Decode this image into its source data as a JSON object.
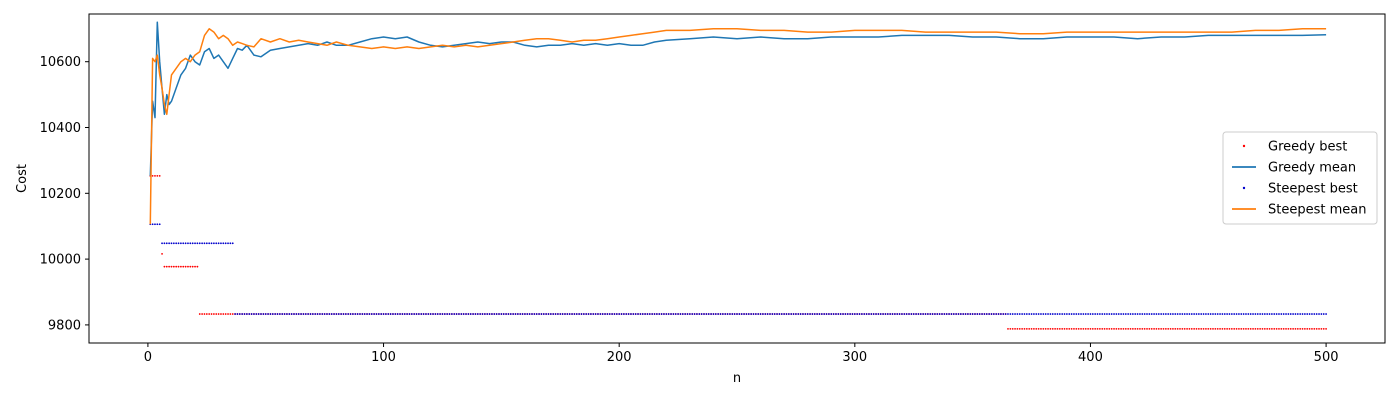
{
  "chart_data": {
    "type": "line",
    "xlabel": "n",
    "ylabel": "Cost",
    "xlim": [
      -25,
      525
    ],
    "ylim": [
      9745,
      10745
    ],
    "x_ticks": [
      0,
      100,
      200,
      300,
      400,
      500
    ],
    "y_ticks": [
      9800,
      10000,
      10200,
      10400,
      10600
    ],
    "grid": false,
    "legend_position": "center-right",
    "series": [
      {
        "name": "Greedy best",
        "kind": "points",
        "color": "#ff0000",
        "segments": [
          {
            "x_from": 1,
            "x_to": 5,
            "value": 10253
          },
          {
            "x_from": 6,
            "x_to": 6,
            "value": 10016
          },
          {
            "x_from": 7,
            "x_to": 21,
            "value": 9977
          },
          {
            "x_from": 22,
            "x_to": 364,
            "value": 9833
          },
          {
            "x_from": 365,
            "x_to": 500,
            "value": 9788
          }
        ]
      },
      {
        "name": "Greedy mean",
        "kind": "line",
        "color": "#1f77b4",
        "x": [
          1,
          2,
          3,
          4,
          5,
          6,
          7,
          8,
          9,
          10,
          12,
          14,
          16,
          18,
          20,
          22,
          24,
          26,
          28,
          30,
          32,
          34,
          36,
          38,
          40,
          42,
          45,
          48,
          52,
          56,
          60,
          64,
          68,
          72,
          76,
          80,
          85,
          90,
          95,
          100,
          105,
          110,
          115,
          120,
          125,
          130,
          135,
          140,
          145,
          150,
          155,
          160,
          165,
          170,
          175,
          180,
          185,
          190,
          195,
          200,
          205,
          210,
          215,
          220,
          230,
          240,
          250,
          260,
          270,
          280,
          290,
          300,
          310,
          320,
          330,
          340,
          350,
          360,
          370,
          380,
          390,
          400,
          410,
          420,
          430,
          440,
          450,
          460,
          470,
          480,
          490,
          500
        ],
        "values": [
          10253,
          10480,
          10430,
          10720,
          10600,
          10520,
          10440,
          10500,
          10470,
          10480,
          10520,
          10560,
          10580,
          10620,
          10600,
          10590,
          10630,
          10640,
          10610,
          10620,
          10600,
          10580,
          10610,
          10640,
          10635,
          10650,
          10620,
          10615,
          10635,
          10640,
          10645,
          10650,
          10655,
          10650,
          10660,
          10650,
          10650,
          10660,
          10670,
          10675,
          10670,
          10675,
          10660,
          10650,
          10645,
          10650,
          10655,
          10660,
          10655,
          10660,
          10660,
          10650,
          10645,
          10650,
          10650,
          10655,
          10650,
          10655,
          10650,
          10655,
          10650,
          10650,
          10660,
          10665,
          10670,
          10675,
          10670,
          10675,
          10670,
          10670,
          10675,
          10675,
          10675,
          10680,
          10680,
          10680,
          10675,
          10675,
          10670,
          10670,
          10675,
          10675,
          10675,
          10670,
          10675,
          10675,
          10680,
          10680,
          10680,
          10680,
          10680,
          10682
        ]
      },
      {
        "name": "Steepest best",
        "kind": "points",
        "color": "#0000cc",
        "segments": [
          {
            "x_from": 1,
            "x_to": 5,
            "value": 10106
          },
          {
            "x_from": 6,
            "x_to": 36,
            "value": 10048
          },
          {
            "x_from": 37,
            "x_to": 500,
            "value": 9833
          }
        ]
      },
      {
        "name": "Steepest mean",
        "kind": "line",
        "color": "#ff7f0e",
        "x": [
          1,
          2,
          3,
          4,
          5,
          6,
          7,
          8,
          9,
          10,
          12,
          14,
          16,
          18,
          20,
          22,
          24,
          26,
          28,
          30,
          32,
          34,
          36,
          38,
          40,
          42,
          45,
          48,
          52,
          56,
          60,
          64,
          68,
          72,
          76,
          80,
          85,
          90,
          95,
          100,
          105,
          110,
          115,
          120,
          125,
          130,
          135,
          140,
          145,
          150,
          155,
          160,
          165,
          170,
          175,
          180,
          185,
          190,
          195,
          200,
          205,
          210,
          215,
          220,
          230,
          240,
          250,
          260,
          270,
          280,
          290,
          300,
          310,
          320,
          330,
          340,
          350,
          360,
          370,
          380,
          390,
          400,
          410,
          420,
          430,
          440,
          450,
          460,
          470,
          480,
          490,
          500
        ],
        "values": [
          10106,
          10610,
          10600,
          10620,
          10560,
          10520,
          10470,
          10440,
          10500,
          10560,
          10580,
          10600,
          10610,
          10600,
          10620,
          10630,
          10680,
          10700,
          10690,
          10670,
          10680,
          10670,
          10650,
          10660,
          10655,
          10650,
          10645,
          10670,
          10660,
          10670,
          10660,
          10665,
          10660,
          10655,
          10650,
          10660,
          10650,
          10645,
          10640,
          10645,
          10640,
          10645,
          10640,
          10645,
          10650,
          10645,
          10650,
          10645,
          10650,
          10655,
          10660,
          10665,
          10670,
          10670,
          10665,
          10660,
          10665,
          10665,
          10670,
          10675,
          10680,
          10685,
          10690,
          10695,
          10695,
          10700,
          10700,
          10695,
          10695,
          10690,
          10690,
          10695,
          10695,
          10695,
          10690,
          10690,
          10690,
          10690,
          10685,
          10685,
          10690,
          10690,
          10690,
          10690,
          10690,
          10690,
          10690,
          10690,
          10695,
          10695,
          10700,
          10700
        ]
      }
    ]
  }
}
